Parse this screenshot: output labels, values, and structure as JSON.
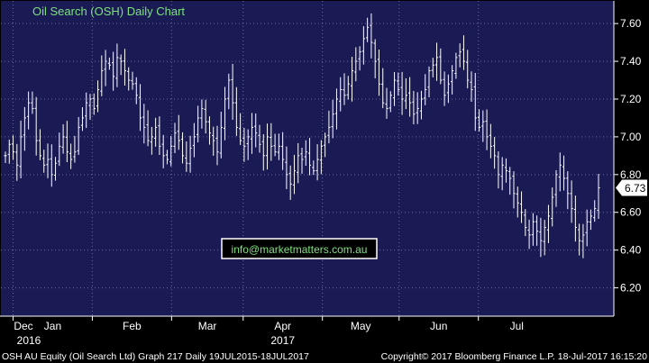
{
  "chart_data": {
    "type": "ohlc",
    "title": "Oil Search (OSH) Daily Chart",
    "ylim": [
      6.05,
      7.72
    ],
    "yticks": [
      "7.60",
      "7.40",
      "7.20",
      "7.00",
      "6.80",
      "6.60",
      "6.40",
      "6.20"
    ],
    "ytick_values": [
      7.6,
      7.4,
      7.2,
      7.0,
      6.8,
      6.6,
      6.4,
      6.2
    ],
    "month_labels": [
      "Dec",
      "Jan",
      "Feb",
      "Mar",
      "Apr",
      "May",
      "Jun",
      "Jul"
    ],
    "year_labels": [
      "2016",
      "2017"
    ],
    "last_price": "6.73",
    "last_value": 6.73,
    "annotation": "info@marketmatters.com.au",
    "series_start": "2016-11-28",
    "series_end": "2017-07-18",
    "close": [
      6.9,
      6.96,
      6.92,
      6.85,
      7.0,
      7.1,
      7.18,
      7.15,
      6.98,
      6.9,
      6.85,
      6.88,
      6.8,
      6.86,
      6.95,
      7.0,
      6.92,
      6.88,
      6.92,
      7.05,
      7.1,
      7.18,
      7.2,
      7.15,
      7.25,
      7.35,
      7.4,
      7.38,
      7.32,
      7.42,
      7.4,
      7.35,
      7.3,
      7.28,
      7.22,
      7.1,
      7.05,
      6.98,
      7.0,
      7.05,
      6.95,
      6.9,
      6.88,
      6.95,
      7.02,
      6.98,
      6.9,
      6.86,
      6.94,
      7.0,
      7.1,
      7.15,
      7.08,
      7.02,
      6.98,
      6.92,
      7.05,
      7.2,
      7.3,
      7.18,
      7.05,
      6.98,
      6.95,
      7.0,
      7.05,
      7.02,
      6.96,
      6.9,
      7.0,
      6.95,
      6.92,
      6.95,
      6.88,
      6.8,
      6.75,
      6.82,
      6.9,
      6.88,
      6.92,
      6.85,
      6.82,
      6.88,
      6.95,
      7.0,
      7.05,
      7.12,
      7.2,
      7.25,
      7.22,
      7.28,
      7.35,
      7.4,
      7.45,
      7.52,
      7.58,
      7.5,
      7.4,
      7.28,
      7.18,
      7.15,
      7.22,
      7.3,
      7.25,
      7.2,
      7.22,
      7.18,
      7.12,
      7.15,
      7.2,
      7.25,
      7.35,
      7.38,
      7.42,
      7.3,
      7.22,
      7.28,
      7.35,
      7.42,
      7.45,
      7.4,
      7.3,
      7.25,
      7.1,
      7.05,
      7.08,
      7.0,
      6.95,
      6.9,
      6.8,
      6.85,
      6.82,
      6.78,
      6.7,
      6.65,
      6.6,
      6.52,
      6.48,
      6.55,
      6.5,
      6.45,
      6.52,
      6.58,
      6.68,
      6.8,
      6.85,
      6.78,
      6.7,
      6.62,
      6.52,
      6.45,
      6.48,
      6.55,
      6.58,
      6.62,
      6.73
    ]
  },
  "footer": {
    "left": "OSH AU Equity (Oil Search Ltd) Graph 217  Daily 19JUL2015-18JUL2017",
    "right": "Copyright© 2017 Bloomberg Finance L.P.    18-Jul-2017 16:15:20"
  },
  "colors": {
    "background": "#1a1a55",
    "grid": "#6a6a9a",
    "bars": "#ffffff",
    "title": "#7fe07f",
    "annotation": "#7fe07f"
  }
}
